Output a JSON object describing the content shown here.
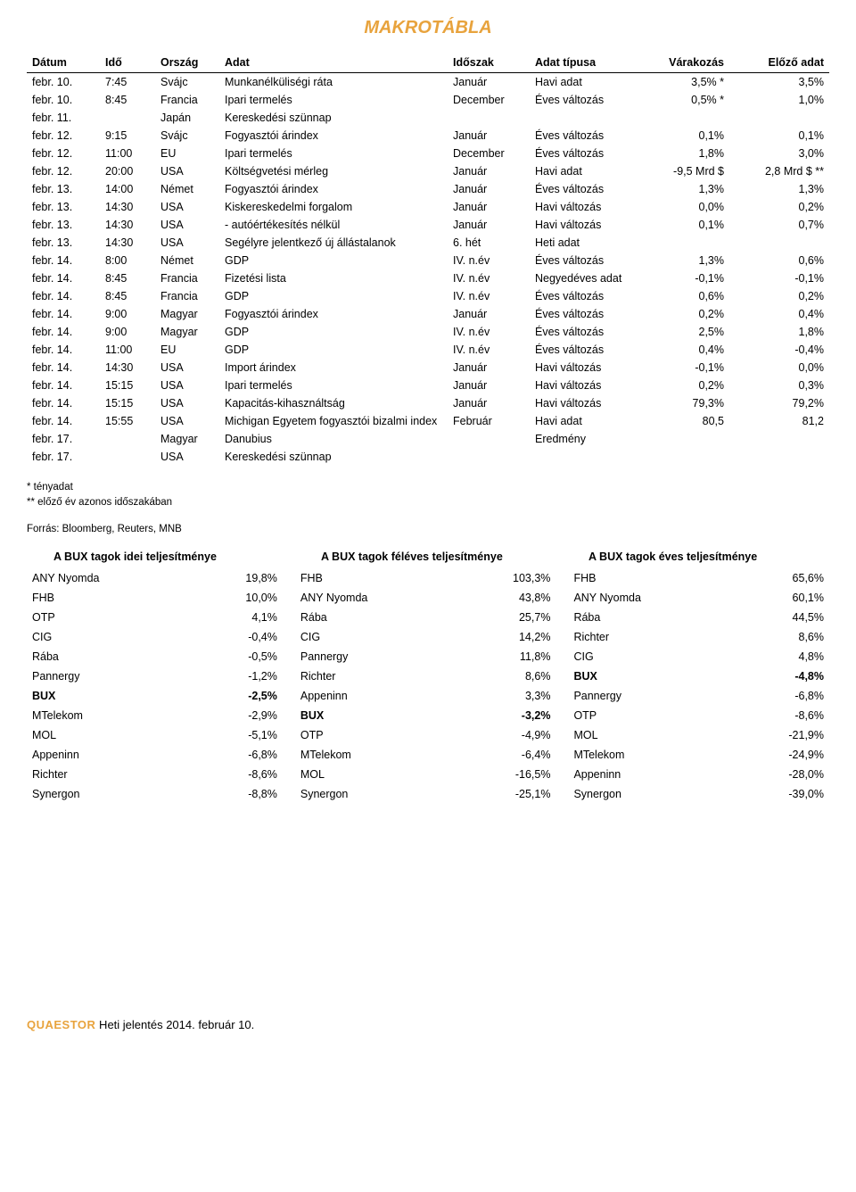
{
  "title": "MAKROTÁBLA",
  "macro_table": {
    "columns": [
      "Dátum",
      "Idő",
      "Ország",
      "Adat",
      "Időszak",
      "Adat típusa",
      "Várakozás",
      "Előző adat"
    ],
    "rows": [
      [
        "febr. 10.",
        "7:45",
        "Svájc",
        "Munkanélküliségi ráta",
        "Január",
        "Havi adat",
        "3,5% *",
        "3,5%"
      ],
      [
        "febr. 10.",
        "8:45",
        "Francia",
        "Ipari termelés",
        "December",
        "Éves változás",
        "0,5% *",
        "1,0%"
      ],
      [
        "febr. 11.",
        "",
        "Japán",
        "Kereskedési szünnap",
        "",
        "",
        "",
        ""
      ],
      [
        "febr. 12.",
        "9:15",
        "Svájc",
        "Fogyasztói árindex",
        "Január",
        "Éves változás",
        "0,1%",
        "0,1%"
      ],
      [
        "febr. 12.",
        "11:00",
        "EU",
        "Ipari termelés",
        "December",
        "Éves változás",
        "1,8%",
        "3,0%"
      ],
      [
        "febr. 12.",
        "20:00",
        "USA",
        "Költségvetési mérleg",
        "Január",
        "Havi adat",
        "-9,5 Mrd $",
        "2,8 Mrd $ **"
      ],
      [
        "febr. 13.",
        "14:00",
        "Német",
        "Fogyasztói árindex",
        "Január",
        "Éves változás",
        "1,3%",
        "1,3%"
      ],
      [
        "febr. 13.",
        "14:30",
        "USA",
        "Kiskereskedelmi forgalom",
        "Január",
        "Havi változás",
        "0,0%",
        "0,2%"
      ],
      [
        "febr. 13.",
        "14:30",
        "USA",
        "  - autóértékesítés nélkül",
        "Január",
        "Havi változás",
        "0,1%",
        "0,7%"
      ],
      [
        "febr. 13.",
        "14:30",
        "USA",
        "Segélyre jelentkező új állástalanok",
        "6. hét",
        "Heti adat",
        "",
        ""
      ],
      [
        "febr. 14.",
        "8:00",
        "Német",
        "GDP",
        "IV. n.év",
        "Éves változás",
        "1,3%",
        "0,6%"
      ],
      [
        "febr. 14.",
        "8:45",
        "Francia",
        "Fizetési lista",
        "IV. n.év",
        "Negyedéves adat",
        "-0,1%",
        "-0,1%"
      ],
      [
        "febr. 14.",
        "8:45",
        "Francia",
        "GDP",
        "IV. n.év",
        "Éves változás",
        "0,6%",
        "0,2%"
      ],
      [
        "febr. 14.",
        "9:00",
        "Magyar",
        "Fogyasztói árindex",
        "Január",
        "Éves változás",
        "0,2%",
        "0,4%"
      ],
      [
        "febr. 14.",
        "9:00",
        "Magyar",
        "GDP",
        "IV. n.év",
        "Éves változás",
        "2,5%",
        "1,8%"
      ],
      [
        "febr. 14.",
        "11:00",
        "EU",
        "GDP",
        "IV. n.év",
        "Éves változás",
        "0,4%",
        "-0,4%"
      ],
      [
        "febr. 14.",
        "14:30",
        "USA",
        "Import árindex",
        "Január",
        "Havi változás",
        "-0,1%",
        "0,0%"
      ],
      [
        "febr. 14.",
        "15:15",
        "USA",
        "Ipari termelés",
        "Január",
        "Havi változás",
        "0,2%",
        "0,3%"
      ],
      [
        "febr. 14.",
        "15:15",
        "USA",
        "Kapacitás-kihasználtság",
        "Január",
        "Havi változás",
        "79,3%",
        "79,2%"
      ],
      [
        "febr. 14.",
        "15:55",
        "USA",
        "Michigan Egyetem fogyasztói bizalmi index",
        "Február",
        "Havi adat",
        "80,5",
        "81,2"
      ],
      [
        "febr. 17.",
        "",
        "Magyar",
        "Danubius",
        "",
        "Eredmény",
        "",
        ""
      ],
      [
        "febr. 17.",
        "",
        "USA",
        "Kereskedési szünnap",
        "",
        "",
        "",
        ""
      ]
    ],
    "col_widths": [
      "70px",
      "50px",
      "60px",
      "auto",
      "80px",
      "110px",
      "90px",
      "100px"
    ]
  },
  "footnotes": {
    "line1": "* tényadat",
    "line2": "** előző év azonos időszakában"
  },
  "source": "Forrás: Bloomberg, Reuters, MNB",
  "perf": {
    "headers": [
      "A BUX tagok idei teljesítménye",
      "A BUX tagok féléves teljesítménye",
      "A BUX tagok éves teljesítménye"
    ],
    "bold_names": [
      "BUX"
    ],
    "rows": [
      [
        [
          "ANY Nyomda",
          "19,8%"
        ],
        [
          "FHB",
          "103,3%"
        ],
        [
          "FHB",
          "65,6%"
        ]
      ],
      [
        [
          "FHB",
          "10,0%"
        ],
        [
          "ANY Nyomda",
          "43,8%"
        ],
        [
          "ANY Nyomda",
          "60,1%"
        ]
      ],
      [
        [
          "OTP",
          "4,1%"
        ],
        [
          "Rába",
          "25,7%"
        ],
        [
          "Rába",
          "44,5%"
        ]
      ],
      [
        [
          "CIG",
          "-0,4%"
        ],
        [
          "CIG",
          "14,2%"
        ],
        [
          "Richter",
          "8,6%"
        ]
      ],
      [
        [
          "Rába",
          "-0,5%"
        ],
        [
          "Pannergy",
          "11,8%"
        ],
        [
          "CIG",
          "4,8%"
        ]
      ],
      [
        [
          "Pannergy",
          "-1,2%"
        ],
        [
          "Richter",
          "8,6%"
        ],
        [
          "BUX",
          "-4,8%"
        ]
      ],
      [
        [
          "BUX",
          "-2,5%"
        ],
        [
          "Appeninn",
          "3,3%"
        ],
        [
          "Pannergy",
          "-6,8%"
        ]
      ],
      [
        [
          "MTelekom",
          "-2,9%"
        ],
        [
          "BUX",
          "-3,2%"
        ],
        [
          "OTP",
          "-8,6%"
        ]
      ],
      [
        [
          "MOL",
          "-5,1%"
        ],
        [
          "OTP",
          "-4,9%"
        ],
        [
          "MOL",
          "-21,9%"
        ]
      ],
      [
        [
          "Appeninn",
          "-6,8%"
        ],
        [
          "MTelekom",
          "-6,4%"
        ],
        [
          "MTelekom",
          "-24,9%"
        ]
      ],
      [
        [
          "Richter",
          "-8,6%"
        ],
        [
          "MOL",
          "-16,5%"
        ],
        [
          "Appeninn",
          "-28,0%"
        ]
      ],
      [
        [
          "Synergon",
          "-8,8%"
        ],
        [
          "Synergon",
          "-25,1%"
        ],
        [
          "Synergon",
          "-39,0%"
        ]
      ]
    ],
    "col_widths": [
      "120px",
      "60px",
      "120px",
      "60px",
      "120px",
      "60px"
    ]
  },
  "footer": {
    "brand": "QUAESTOR",
    "text": " Heti jelentés 2014. február 10."
  }
}
